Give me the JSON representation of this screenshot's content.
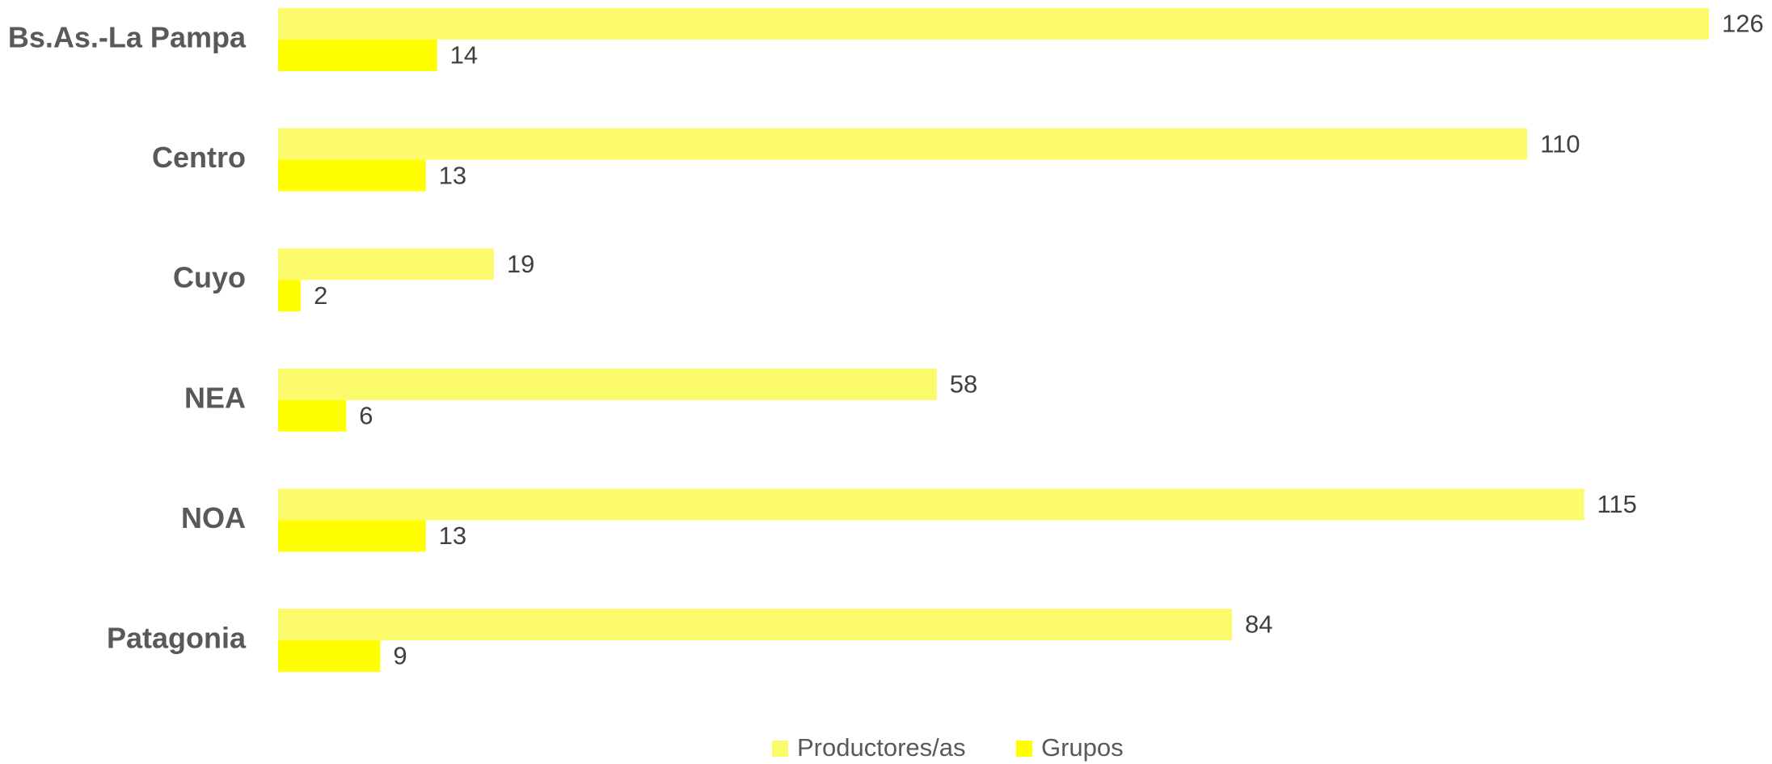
{
  "chart_data": {
    "type": "bar",
    "orientation": "horizontal",
    "categories": [
      "Bs.As.-La Pampa",
      "Centro",
      "Cuyo",
      "NEA",
      "NOA",
      "Patagonia"
    ],
    "series": [
      {
        "name": "Productores/as",
        "color": "#fbfb6b",
        "values": [
          126,
          110,
          19,
          58,
          115,
          84
        ]
      },
      {
        "name": "Grupos",
        "color": "#ffff00",
        "values": [
          14,
          13,
          2,
          6,
          13,
          9
        ]
      }
    ],
    "legend": "bottom"
  }
}
